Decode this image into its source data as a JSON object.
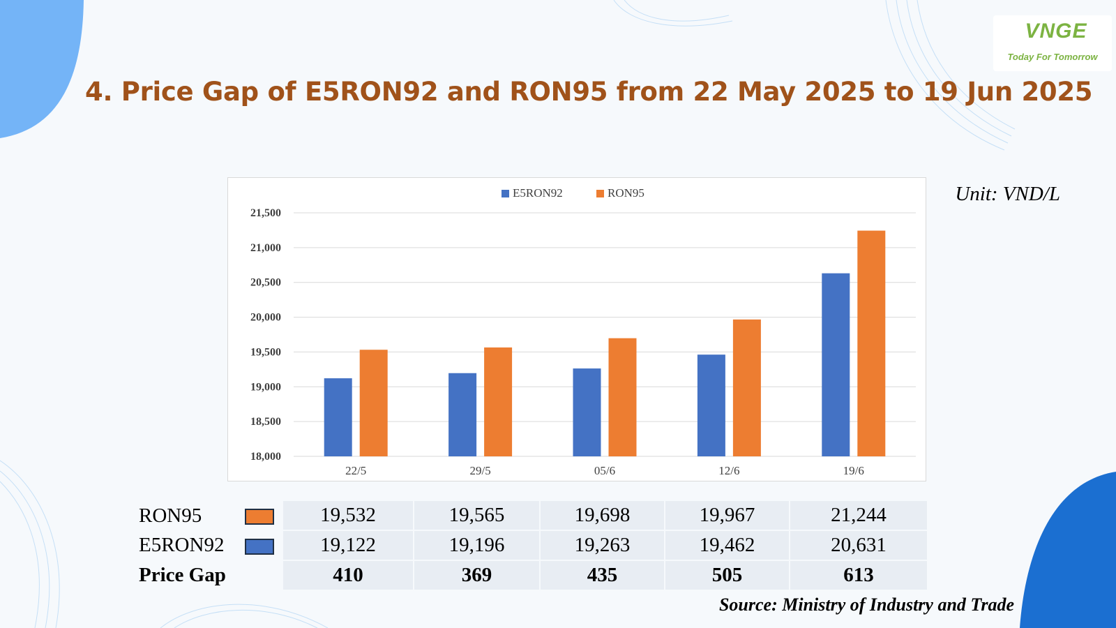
{
  "logo": {
    "mark": "VNGE",
    "tagline": "Today For Tomorrow"
  },
  "title": "4. Price Gap of E5RON92 and RON95 from 22 May 2025 to 19 Jun 2025",
  "unit": "Unit: VND/L",
  "source": "Source: Ministry of Industry and Trade",
  "colors": {
    "E5RON92": "#4472c4",
    "RON95": "#ed7d31",
    "title": "#a0521a"
  },
  "chart_data": {
    "type": "bar",
    "categories": [
      "22/5",
      "29/5",
      "05/6",
      "12/6",
      "19/6"
    ],
    "series": [
      {
        "name": "E5RON92",
        "values": [
          19122,
          19196,
          19263,
          19462,
          20631
        ]
      },
      {
        "name": "RON95",
        "values": [
          19532,
          19565,
          19698,
          19967,
          21244
        ]
      }
    ],
    "ylim": [
      18000,
      21500
    ],
    "yticks": [
      "18,000",
      "18,500",
      "19,000",
      "19,500",
      "20,000",
      "20,500",
      "21,000",
      "21,500"
    ],
    "ytick_values": [
      18000,
      18500,
      19000,
      19500,
      20000,
      20500,
      21000,
      21500
    ],
    "grid": true,
    "legend": "top"
  },
  "table": {
    "rows": [
      {
        "label": "RON95",
        "swatch": "#ed7d31",
        "values": [
          "19,532",
          "19,565",
          "19,698",
          "19,967",
          "21,244"
        ]
      },
      {
        "label": "E5RON92",
        "swatch": "#4472c4",
        "values": [
          "19,122",
          "19,196",
          "19,263",
          "19,462",
          "20,631"
        ]
      },
      {
        "label": "Price Gap",
        "values": [
          "410",
          "369",
          "435",
          "505",
          "613"
        ]
      }
    ]
  }
}
